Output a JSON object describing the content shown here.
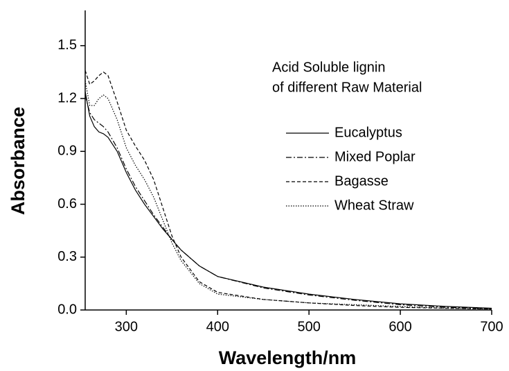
{
  "chart_data": {
    "type": "line",
    "xlabel": "Wavelength/nm",
    "ylabel": "Absorbance",
    "annotation": [
      "Acid Soluble lignin",
      "of different Raw Material"
    ],
    "x": [
      255,
      260,
      265,
      270,
      275,
      280,
      290,
      300,
      310,
      320,
      330,
      340,
      350,
      360,
      380,
      400,
      450,
      500,
      550,
      600,
      650,
      700
    ],
    "series": [
      {
        "name": "Eucalyptus",
        "color": "#000000",
        "dash": "solid",
        "values": [
          1.24,
          1.1,
          1.04,
          1.01,
          1.0,
          0.98,
          0.9,
          0.78,
          0.68,
          0.6,
          0.53,
          0.46,
          0.4,
          0.34,
          0.25,
          0.19,
          0.13,
          0.09,
          0.06,
          0.035,
          0.02,
          0.01
        ]
      },
      {
        "name": "Mixed Poplar",
        "color": "#000000",
        "dash": "dashdot",
        "values": [
          1.22,
          1.12,
          1.08,
          1.06,
          1.04,
          1.01,
          0.92,
          0.8,
          0.7,
          0.62,
          0.54,
          0.47,
          0.4,
          0.34,
          0.25,
          0.19,
          0.125,
          0.085,
          0.055,
          0.03,
          0.015,
          0.008
        ]
      },
      {
        "name": "Bagasse",
        "color": "#000000",
        "dash": "dashed",
        "values": [
          1.36,
          1.28,
          1.3,
          1.33,
          1.35,
          1.33,
          1.18,
          1.02,
          0.93,
          0.85,
          0.74,
          0.58,
          0.42,
          0.3,
          0.16,
          0.1,
          0.06,
          0.04,
          0.025,
          0.015,
          0.01,
          0.005
        ]
      },
      {
        "name": "Wheat Straw",
        "color": "#000000",
        "dash": "dotted",
        "values": [
          1.3,
          1.16,
          1.16,
          1.2,
          1.22,
          1.2,
          1.08,
          0.92,
          0.82,
          0.74,
          0.64,
          0.51,
          0.38,
          0.28,
          0.15,
          0.09,
          0.06,
          0.04,
          0.03,
          0.02,
          0.01,
          0.005
        ]
      }
    ],
    "xlim": [
      255,
      700
    ],
    "ylim": [
      0,
      1.7
    ],
    "xticks": [
      300,
      400,
      500,
      600,
      700
    ],
    "yticks": [
      {
        "value": 0,
        "label": "0.0"
      },
      0.3,
      0.6,
      0.9,
      1.2,
      1.5
    ]
  }
}
